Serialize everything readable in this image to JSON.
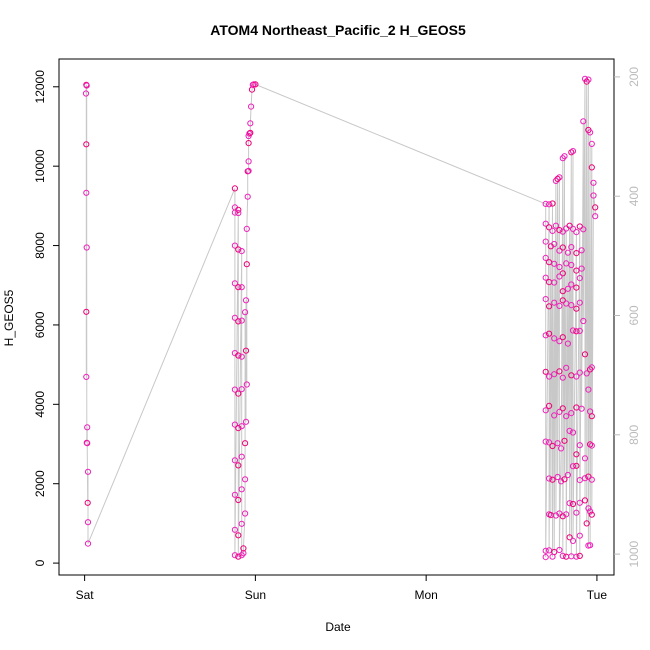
{
  "chart_data": {
    "type": "scatter",
    "title": "ATOM4 Northeast_Pacific_2 H_GEOS5",
    "xlabel": "Date",
    "ylabel": "H_GEOS5",
    "x_ticks": [
      "Sat",
      "Sun",
      "Mon",
      "Tue"
    ],
    "xlim": [
      -0.15,
      3.1
    ],
    "ylim": [
      -300,
      12700
    ],
    "y_ticks": [
      0,
      2000,
      4000,
      6000,
      8000,
      10000,
      12000
    ],
    "right_axis": {
      "ylim": [
        1035,
        170
      ],
      "ticks": [
        200,
        400,
        600,
        800,
        1000
      ]
    },
    "grid": false,
    "point_colors": [
      "#ee22bb",
      "#ee0077"
    ],
    "line_color": "#c8c8c8",
    "series": [
      {
        "values_x_unit": "days since Sat 00:00",
        "points": [
          [
            0.01,
            12050
          ],
          [
            0.012,
            12030
          ],
          [
            0.008,
            11830
          ],
          [
            0.01,
            10550
          ],
          [
            0.01,
            9330
          ],
          [
            0.012,
            7950
          ],
          [
            0.01,
            6330
          ],
          [
            0.01,
            4690
          ],
          [
            0.015,
            3420
          ],
          [
            0.013,
            3030
          ],
          [
            0.015,
            3020
          ],
          [
            0.02,
            2300
          ],
          [
            0.018,
            1520
          ],
          [
            0.02,
            1030
          ],
          [
            0.02,
            490
          ],
          [
            0.88,
            9440
          ],
          [
            0.88,
            8960
          ],
          [
            0.88,
            8830
          ],
          [
            0.9,
            8900
          ],
          [
            0.9,
            8820
          ],
          [
            0.88,
            8000
          ],
          [
            0.9,
            7900
          ],
          [
            0.92,
            7860
          ],
          [
            0.88,
            7050
          ],
          [
            0.9,
            6950
          ],
          [
            0.92,
            6950
          ],
          [
            0.88,
            6180
          ],
          [
            0.9,
            6090
          ],
          [
            0.92,
            6110
          ],
          [
            0.88,
            5290
          ],
          [
            0.9,
            5230
          ],
          [
            0.92,
            5200
          ],
          [
            0.88,
            4370
          ],
          [
            0.9,
            4270
          ],
          [
            0.92,
            4380
          ],
          [
            0.88,
            3490
          ],
          [
            0.9,
            3400
          ],
          [
            0.92,
            3450
          ],
          [
            0.88,
            2590
          ],
          [
            0.9,
            2460
          ],
          [
            0.92,
            2680
          ],
          [
            0.88,
            1720
          ],
          [
            0.9,
            1590
          ],
          [
            0.92,
            1860
          ],
          [
            0.88,
            840
          ],
          [
            0.9,
            700
          ],
          [
            0.92,
            990
          ],
          [
            0.88,
            200
          ],
          [
            0.9,
            160
          ],
          [
            0.92,
            200
          ],
          [
            0.93,
            250
          ],
          [
            0.93,
            370
          ],
          [
            0.94,
            1250
          ],
          [
            0.94,
            2110
          ],
          [
            0.94,
            3020
          ],
          [
            0.945,
            3560
          ],
          [
            0.95,
            4500
          ],
          [
            0.945,
            5350
          ],
          [
            0.94,
            6320
          ],
          [
            0.945,
            6620
          ],
          [
            0.95,
            7530
          ],
          [
            0.95,
            8420
          ],
          [
            0.955,
            9230
          ],
          [
            0.955,
            9870
          ],
          [
            0.96,
            9880
          ],
          [
            0.96,
            10120
          ],
          [
            0.96,
            10580
          ],
          [
            0.96,
            10760
          ],
          [
            0.965,
            10820
          ],
          [
            0.97,
            10840
          ],
          [
            0.97,
            11080
          ],
          [
            0.975,
            11500
          ],
          [
            0.98,
            11930
          ],
          [
            0.985,
            12050
          ],
          [
            0.99,
            12060
          ],
          [
            1.0,
            12060
          ],
          [
            2.7,
            9050
          ],
          [
            2.72,
            9040
          ],
          [
            2.74,
            9060
          ],
          [
            2.76,
            9630
          ],
          [
            2.78,
            9720
          ],
          [
            2.77,
            9680
          ],
          [
            2.8,
            10200
          ],
          [
            2.81,
            10250
          ],
          [
            2.85,
            10350
          ],
          [
            2.86,
            10380
          ],
          [
            2.93,
            12200
          ],
          [
            2.94,
            12130
          ],
          [
            2.95,
            12180
          ],
          [
            2.92,
            11130
          ],
          [
            2.95,
            10910
          ],
          [
            2.96,
            10850
          ],
          [
            2.97,
            10560
          ],
          [
            2.97,
            9970
          ],
          [
            2.98,
            9580
          ],
          [
            2.98,
            9260
          ],
          [
            2.99,
            8960
          ],
          [
            2.99,
            8740
          ],
          [
            2.7,
            8550
          ],
          [
            2.72,
            8460
          ],
          [
            2.74,
            8370
          ],
          [
            2.76,
            8500
          ],
          [
            2.78,
            8390
          ],
          [
            2.8,
            8350
          ],
          [
            2.82,
            8430
          ],
          [
            2.84,
            8500
          ],
          [
            2.86,
            8420
          ],
          [
            2.88,
            8340
          ],
          [
            2.9,
            8480
          ],
          [
            2.92,
            8410
          ],
          [
            2.7,
            8100
          ],
          [
            2.73,
            7980
          ],
          [
            2.75,
            8040
          ],
          [
            2.78,
            7870
          ],
          [
            2.8,
            7950
          ],
          [
            2.83,
            7820
          ],
          [
            2.85,
            7960
          ],
          [
            2.88,
            7810
          ],
          [
            2.91,
            7880
          ],
          [
            2.7,
            7690
          ],
          [
            2.72,
            7580
          ],
          [
            2.75,
            7540
          ],
          [
            2.78,
            7460
          ],
          [
            2.8,
            7300
          ],
          [
            2.82,
            7550
          ],
          [
            2.85,
            7510
          ],
          [
            2.88,
            7370
          ],
          [
            2.91,
            7420
          ],
          [
            2.7,
            7190
          ],
          [
            2.72,
            7080
          ],
          [
            2.75,
            7070
          ],
          [
            2.78,
            7220
          ],
          [
            2.8,
            6850
          ],
          [
            2.83,
            6910
          ],
          [
            2.85,
            7020
          ],
          [
            2.88,
            6940
          ],
          [
            2.9,
            7180
          ],
          [
            2.7,
            6650
          ],
          [
            2.72,
            6470
          ],
          [
            2.75,
            6560
          ],
          [
            2.78,
            6480
          ],
          [
            2.8,
            6620
          ],
          [
            2.82,
            6540
          ],
          [
            2.85,
            6500
          ],
          [
            2.88,
            6410
          ],
          [
            2.9,
            6560
          ],
          [
            2.7,
            5740
          ],
          [
            2.72,
            5780
          ],
          [
            2.75,
            5660
          ],
          [
            2.78,
            5590
          ],
          [
            2.8,
            5690
          ],
          [
            2.83,
            5530
          ],
          [
            2.86,
            5860
          ],
          [
            2.88,
            5840
          ],
          [
            2.9,
            5850
          ],
          [
            2.92,
            6100
          ],
          [
            2.7,
            4820
          ],
          [
            2.72,
            4700
          ],
          [
            2.75,
            4760
          ],
          [
            2.78,
            4830
          ],
          [
            2.8,
            4670
          ],
          [
            2.82,
            4920
          ],
          [
            2.85,
            4730
          ],
          [
            2.88,
            4700
          ],
          [
            2.9,
            4800
          ],
          [
            2.93,
            5260
          ],
          [
            2.94,
            4780
          ],
          [
            2.95,
            4370
          ],
          [
            2.96,
            4880
          ],
          [
            2.97,
            4930
          ],
          [
            2.7,
            3850
          ],
          [
            2.72,
            3960
          ],
          [
            2.75,
            3720
          ],
          [
            2.78,
            3810
          ],
          [
            2.8,
            3900
          ],
          [
            2.82,
            3700
          ],
          [
            2.85,
            3780
          ],
          [
            2.88,
            3920
          ],
          [
            2.91,
            3890
          ],
          [
            2.96,
            3820
          ],
          [
            2.97,
            3700
          ],
          [
            2.7,
            3060
          ],
          [
            2.72,
            3040
          ],
          [
            2.74,
            2950
          ],
          [
            2.77,
            3020
          ],
          [
            2.79,
            2890
          ],
          [
            2.81,
            3080
          ],
          [
            2.84,
            3330
          ],
          [
            2.86,
            3290
          ],
          [
            2.88,
            2740
          ],
          [
            2.9,
            2970
          ],
          [
            2.93,
            2640
          ],
          [
            2.96,
            2990
          ],
          [
            2.97,
            2960
          ],
          [
            2.72,
            2130
          ],
          [
            2.74,
            2100
          ],
          [
            2.77,
            2170
          ],
          [
            2.79,
            2060
          ],
          [
            2.81,
            2110
          ],
          [
            2.83,
            2220
          ],
          [
            2.86,
            2440
          ],
          [
            2.88,
            2450
          ],
          [
            2.9,
            2090
          ],
          [
            2.93,
            2140
          ],
          [
            2.95,
            2180
          ],
          [
            2.97,
            2100
          ],
          [
            2.72,
            1230
          ],
          [
            2.73,
            1210
          ],
          [
            2.76,
            1200
          ],
          [
            2.78,
            1250
          ],
          [
            2.8,
            1180
          ],
          [
            2.82,
            1230
          ],
          [
            2.84,
            1510
          ],
          [
            2.86,
            1490
          ],
          [
            2.88,
            1270
          ],
          [
            2.9,
            1520
          ],
          [
            2.93,
            1580
          ],
          [
            2.95,
            1380
          ],
          [
            2.96,
            1300
          ],
          [
            2.97,
            1220
          ],
          [
            2.7,
            310
          ],
          [
            2.72,
            320
          ],
          [
            2.75,
            280
          ],
          [
            2.78,
            330
          ],
          [
            2.8,
            180
          ],
          [
            2.82,
            160
          ],
          [
            2.85,
            170
          ],
          [
            2.88,
            160
          ],
          [
            2.9,
            180
          ],
          [
            2.7,
            150
          ],
          [
            2.74,
            160
          ],
          [
            2.84,
            650
          ],
          [
            2.86,
            560
          ],
          [
            2.9,
            690
          ],
          [
            2.94,
            1000
          ],
          [
            2.95,
            440
          ],
          [
            2.96,
            450
          ]
        ]
      }
    ]
  }
}
